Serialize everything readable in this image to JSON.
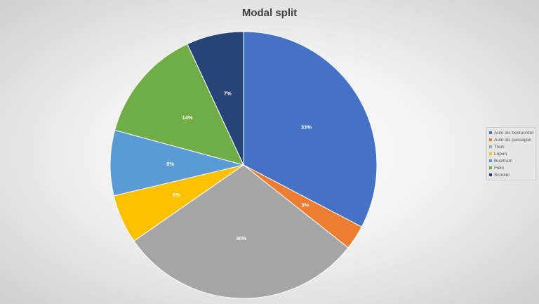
{
  "chart_data": {
    "type": "pie",
    "title": "Modal split",
    "categories": [
      "Auto als bestuurder",
      "Auto als passagier",
      "Trein",
      "Lopen",
      "Bus/tram",
      "Fiets",
      "Scooter"
    ],
    "values": [
      33,
      3,
      30,
      6,
      8,
      14,
      7
    ],
    "data_labels": [
      "33%",
      "3%",
      "30%",
      "6%",
      "8%",
      "14%",
      "7%"
    ],
    "colors": [
      "#4472C4",
      "#ED7D31",
      "#A5A5A5",
      "#FFC000",
      "#5B9BD5",
      "#70AD47",
      "#264478"
    ],
    "legend_position": "right",
    "start_angle": "12 o'clock",
    "direction": "clockwise"
  }
}
